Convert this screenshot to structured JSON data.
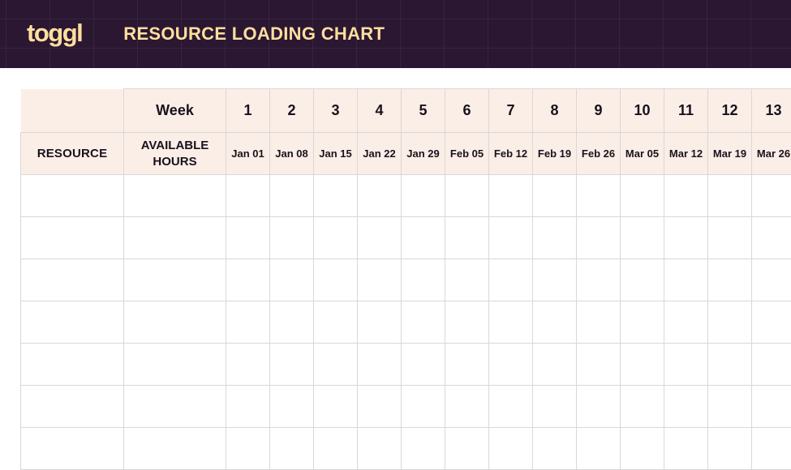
{
  "brand": {
    "logo": "toggl",
    "title": "RESOURCE LOADING CHART"
  },
  "table": {
    "week_label": "Week",
    "resource_label": "RESOURCE",
    "available_hours_label": "AVAILABLE HOURS",
    "weeks": [
      {
        "number": "1",
        "date": "Jan 01"
      },
      {
        "number": "2",
        "date": "Jan 08"
      },
      {
        "number": "3",
        "date": "Jan 15"
      },
      {
        "number": "4",
        "date": "Jan 22"
      },
      {
        "number": "5",
        "date": "Jan 29"
      },
      {
        "number": "6",
        "date": "Feb 05"
      },
      {
        "number": "7",
        "date": "Feb 12"
      },
      {
        "number": "8",
        "date": "Feb 19"
      },
      {
        "number": "9",
        "date": "Feb 26"
      },
      {
        "number": "10",
        "date": "Mar 05"
      },
      {
        "number": "11",
        "date": "Mar 12"
      },
      {
        "number": "12",
        "date": "Mar 19"
      },
      {
        "number": "13",
        "date": "Mar 26"
      }
    ],
    "empty_body_rows": 7,
    "body_cell_value": ""
  },
  "colors": {
    "header_bg": "#2b1732",
    "header_grid_line": "rgba(255,255,255,0.05)",
    "brand_cream": "#ffdf9e",
    "header_cell_bg": "#fbeee7",
    "cell_border": "#d8d8d8",
    "text_dark": "#18121c",
    "body_bg": "#ffffff"
  }
}
